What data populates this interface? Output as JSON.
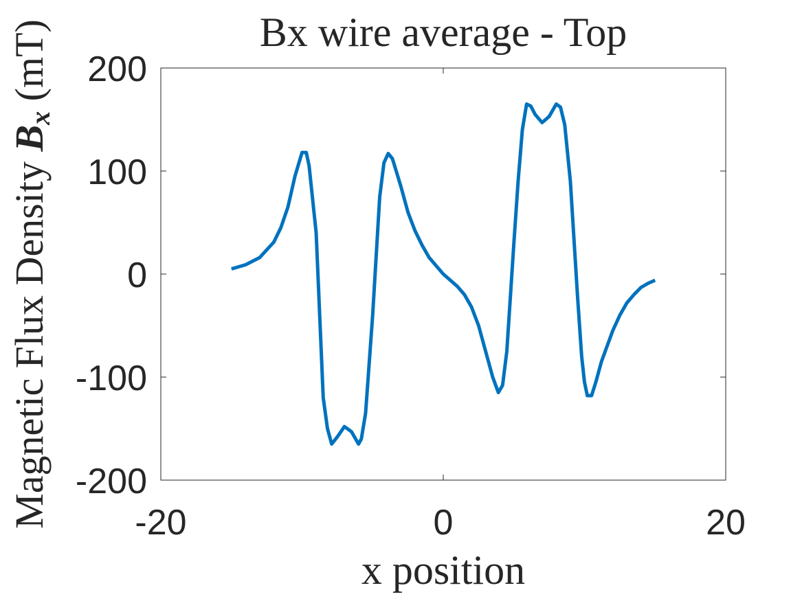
{
  "chart_data": {
    "type": "line",
    "title": "Bx wire average - Top",
    "xlabel": "x position",
    "ylabel": {
      "text": "Magnetic Flux Density",
      "symbol": "B",
      "subscript": "x",
      "unit": "(mT)"
    },
    "xlim": [
      -20,
      20
    ],
    "ylim": [
      -200,
      200
    ],
    "xticks": [
      -20,
      0,
      20
    ],
    "yticks": [
      -200,
      -100,
      0,
      100,
      200
    ],
    "grid": false,
    "series": [
      {
        "name": "Bx",
        "color": "#0072bd",
        "x": [
          -15,
          -14,
          -13,
          -12,
          -11.5,
          -11,
          -10.5,
          -10,
          -9.7,
          -9.5,
          -9,
          -8.5,
          -8.2,
          -7.9,
          -7.5,
          -7,
          -6.5,
          -6,
          -5.8,
          -5.5,
          -5,
          -4.5,
          -4.2,
          -3.9,
          -3.6,
          -3,
          -2.5,
          -2,
          -1.5,
          -1,
          -0.5,
          0,
          0.5,
          1,
          1.5,
          2,
          2.5,
          3,
          3.5,
          3.9,
          4.2,
          4.5,
          5,
          5.3,
          5.6,
          5.9,
          6.2,
          6.5,
          7,
          7.5,
          8,
          8.3,
          8.6,
          9,
          9.5,
          9.8,
          10,
          10.2,
          10.5,
          10.8,
          11.2,
          12,
          12.5,
          13,
          13.5,
          14,
          14.5,
          15
        ],
        "values": [
          5,
          9,
          16,
          31,
          45,
          65,
          95,
          118,
          118,
          105,
          40,
          -120,
          -150,
          -165,
          -158,
          -148,
          -153,
          -165,
          -160,
          -135,
          -40,
          75,
          108,
          117,
          112,
          85,
          60,
          42,
          28,
          16,
          8,
          0,
          -6,
          -12,
          -20,
          -32,
          -50,
          -75,
          -100,
          -115,
          -108,
          -75,
          30,
          90,
          140,
          165,
          163,
          155,
          147,
          153,
          165,
          162,
          145,
          90,
          -20,
          -80,
          -105,
          -118,
          -118,
          -105,
          -85,
          -55,
          -40,
          -28,
          -20,
          -13,
          -9,
          -6
        ]
      }
    ]
  }
}
